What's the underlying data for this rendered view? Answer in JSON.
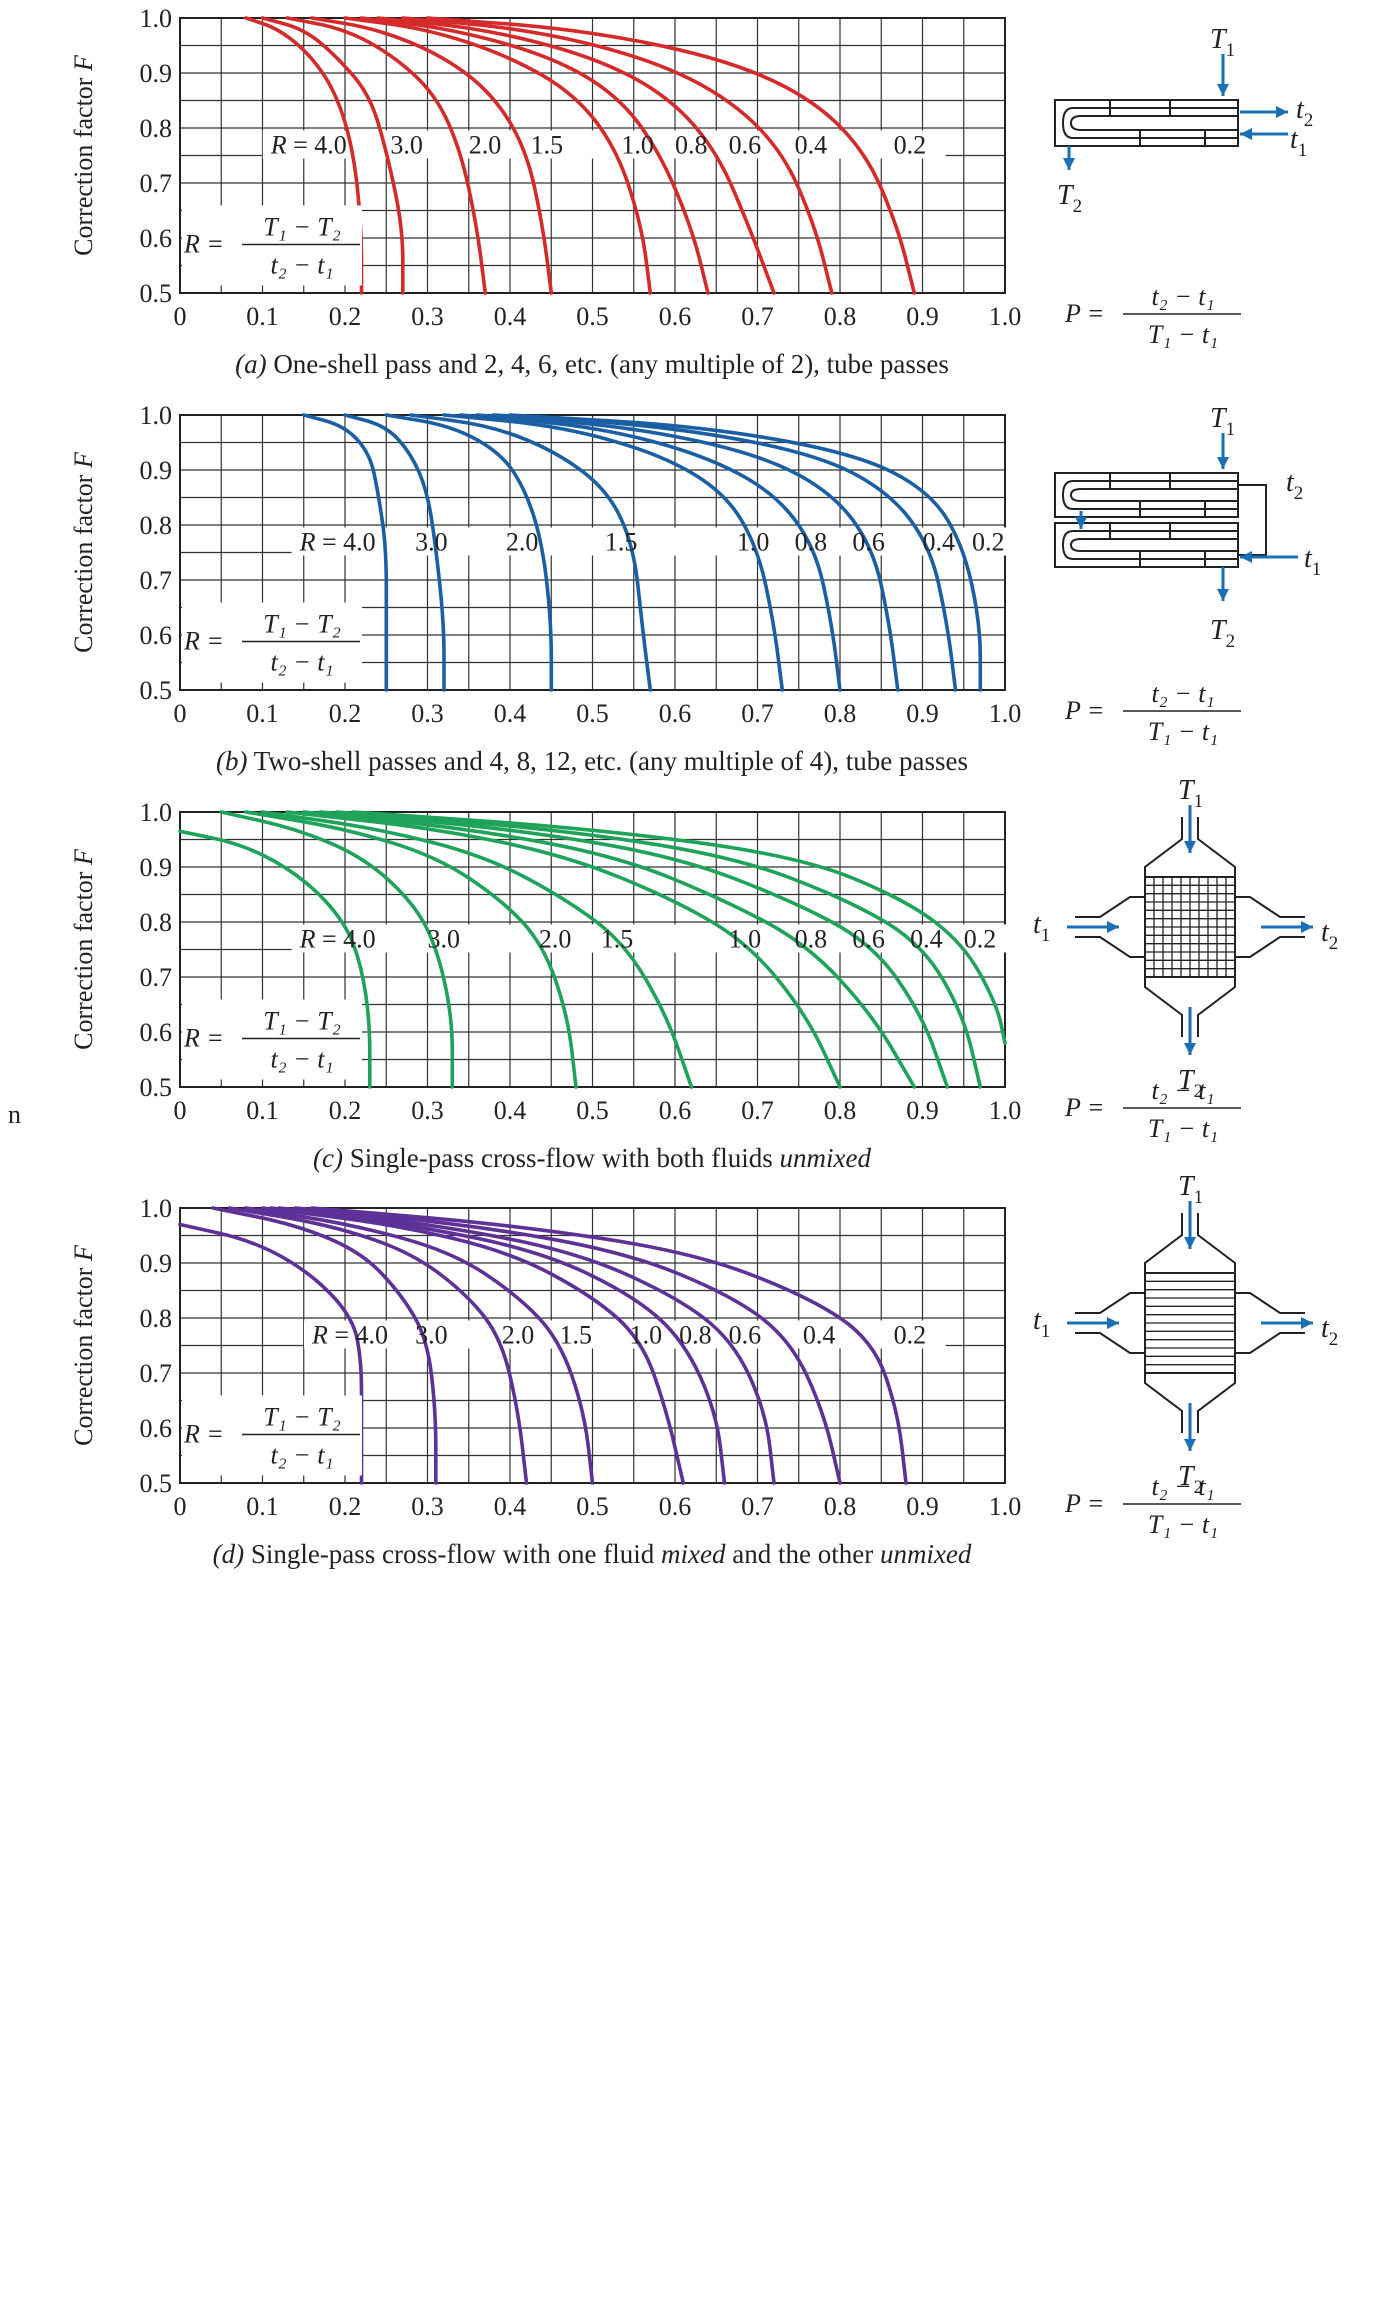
{
  "stray_text": "n",
  "axis": {
    "ylabel_main": "Correction factor ",
    "ylabel_italic": "F",
    "x_ticks": [
      "0",
      "0.1",
      "0.2",
      "0.3",
      "0.4",
      "0.5",
      "0.6",
      "0.7",
      "0.8",
      "0.9",
      "1.0"
    ],
    "y_ticks": [
      "0.5",
      "0.6",
      "0.7",
      "0.8",
      "0.9",
      "1.0"
    ],
    "p_formula": {
      "lhs": "P =",
      "num": "t₂ − t₁",
      "den": "T₁ − t₁"
    },
    "r_formula": {
      "lhs": "R =",
      "num": "T₁ − T₂",
      "den": "t₂ − t₁"
    }
  },
  "chart_data": [
    {
      "type": "line",
      "panel": "a",
      "caption_prefix": "(a)",
      "caption": " One-shell pass and 2, 4, 6, etc. (any multiple of 2), tube passes",
      "color": "#d42a2a",
      "xlim": [
        0,
        1.0
      ],
      "ylim": [
        0.5,
        1.0
      ],
      "grid": true,
      "series": [
        {
          "name": "R = 4.0",
          "x": [
            0.08,
            0.12,
            0.16,
            0.19,
            0.21,
            0.22,
            0.22
          ],
          "y": [
            1.0,
            0.98,
            0.93,
            0.86,
            0.76,
            0.62,
            0.5
          ]
        },
        {
          "name": "3.0",
          "x": [
            0.1,
            0.15,
            0.19,
            0.23,
            0.25,
            0.27,
            0.27
          ],
          "y": [
            1.0,
            0.98,
            0.93,
            0.86,
            0.76,
            0.62,
            0.5
          ]
        },
        {
          "name": "2.0",
          "x": [
            0.13,
            0.2,
            0.26,
            0.31,
            0.34,
            0.36,
            0.37
          ],
          "y": [
            1.0,
            0.98,
            0.93,
            0.86,
            0.76,
            0.62,
            0.5
          ]
        },
        {
          "name": "1.5",
          "x": [
            0.16,
            0.24,
            0.32,
            0.38,
            0.42,
            0.44,
            0.45
          ],
          "y": [
            1.0,
            0.98,
            0.93,
            0.86,
            0.76,
            0.62,
            0.5
          ]
        },
        {
          "name": "1.0",
          "x": [
            0.2,
            0.3,
            0.4,
            0.48,
            0.53,
            0.56,
            0.57
          ],
          "y": [
            1.0,
            0.98,
            0.93,
            0.86,
            0.76,
            0.62,
            0.5
          ]
        },
        {
          "name": "0.8",
          "x": [
            0.22,
            0.33,
            0.45,
            0.53,
            0.58,
            0.62,
            0.64
          ],
          "y": [
            1.0,
            0.98,
            0.93,
            0.86,
            0.76,
            0.62,
            0.5
          ]
        },
        {
          "name": "0.6",
          "x": [
            0.24,
            0.37,
            0.5,
            0.59,
            0.65,
            0.69,
            0.72
          ],
          "y": [
            1.0,
            0.98,
            0.93,
            0.86,
            0.76,
            0.62,
            0.5
          ]
        },
        {
          "name": "0.4",
          "x": [
            0.27,
            0.42,
            0.56,
            0.66,
            0.73,
            0.77,
            0.79
          ],
          "y": [
            1.0,
            0.98,
            0.93,
            0.86,
            0.76,
            0.62,
            0.5
          ]
        },
        {
          "name": "0.2",
          "x": [
            0.3,
            0.48,
            0.65,
            0.76,
            0.83,
            0.87,
            0.89
          ],
          "y": [
            1.0,
            0.98,
            0.93,
            0.86,
            0.76,
            0.62,
            0.5
          ]
        }
      ],
      "label_row_y": 0.77,
      "labels": [
        {
          "text": "R = 4.0",
          "x": 0.11
        },
        {
          "text": "3.0",
          "x": 0.255
        },
        {
          "text": "2.0",
          "x": 0.35
        },
        {
          "text": "1.5",
          "x": 0.425
        },
        {
          "text": "1.0",
          "x": 0.535
        },
        {
          "text": "0.8",
          "x": 0.6
        },
        {
          "text": "0.6",
          "x": 0.665
        },
        {
          "text": "0.4",
          "x": 0.745
        },
        {
          "text": "0.2",
          "x": 0.865
        }
      ],
      "diagram": {
        "kind": "one-shell",
        "T1": "T",
        "T1s": "1",
        "t2": "t",
        "t2s": "2",
        "t1": "t",
        "t1s": "1",
        "T2": "T",
        "T2s": "2"
      }
    },
    {
      "type": "line",
      "panel": "b",
      "caption_prefix": "(b)",
      "caption": " Two-shell passes and 4, 8, 12, etc. (any multiple of 4), tube passes",
      "color": "#1a5fa3",
      "xlim": [
        0,
        1.0
      ],
      "ylim": [
        0.5,
        1.0
      ],
      "grid": true,
      "series": [
        {
          "name": "R = 4.0",
          "x": [
            0.15,
            0.2,
            0.23,
            0.24,
            0.25,
            0.25,
            0.25
          ],
          "y": [
            1.0,
            0.98,
            0.93,
            0.86,
            0.76,
            0.62,
            0.5
          ]
        },
        {
          "name": "3.0",
          "x": [
            0.2,
            0.25,
            0.28,
            0.3,
            0.31,
            0.32,
            0.32
          ],
          "y": [
            1.0,
            0.98,
            0.93,
            0.86,
            0.76,
            0.62,
            0.5
          ]
        },
        {
          "name": "2.0",
          "x": [
            0.25,
            0.33,
            0.39,
            0.42,
            0.44,
            0.45,
            0.45
          ],
          "y": [
            1.0,
            0.98,
            0.93,
            0.86,
            0.76,
            0.62,
            0.5
          ]
        },
        {
          "name": "1.5",
          "x": [
            0.28,
            0.38,
            0.46,
            0.52,
            0.55,
            0.56,
            0.57
          ],
          "y": [
            1.0,
            0.98,
            0.93,
            0.86,
            0.76,
            0.62,
            0.5
          ]
        },
        {
          "name": "1.0",
          "x": [
            0.32,
            0.46,
            0.58,
            0.66,
            0.7,
            0.72,
            0.73
          ],
          "y": [
            1.0,
            0.98,
            0.93,
            0.86,
            0.76,
            0.62,
            0.5
          ]
        },
        {
          "name": "0.8",
          "x": [
            0.34,
            0.5,
            0.63,
            0.72,
            0.77,
            0.79,
            0.8
          ],
          "y": [
            1.0,
            0.98,
            0.93,
            0.86,
            0.76,
            0.62,
            0.5
          ]
        },
        {
          "name": "0.6",
          "x": [
            0.36,
            0.54,
            0.7,
            0.79,
            0.84,
            0.86,
            0.87
          ],
          "y": [
            1.0,
            0.98,
            0.93,
            0.86,
            0.76,
            0.62,
            0.5
          ]
        },
        {
          "name": "0.4",
          "x": [
            0.38,
            0.59,
            0.77,
            0.86,
            0.91,
            0.93,
            0.94
          ],
          "y": [
            1.0,
            0.98,
            0.93,
            0.86,
            0.76,
            0.62,
            0.5
          ]
        },
        {
          "name": "0.2",
          "x": [
            0.4,
            0.63,
            0.82,
            0.91,
            0.95,
            0.97,
            0.97
          ],
          "y": [
            1.0,
            0.98,
            0.93,
            0.86,
            0.76,
            0.62,
            0.5
          ]
        }
      ],
      "label_row_y": 0.77,
      "labels": [
        {
          "text": "R = 4.0",
          "x": 0.145
        },
        {
          "text": "3.0",
          "x": 0.285
        },
        {
          "text": "2.0",
          "x": 0.395
        },
        {
          "text": "1.5",
          "x": 0.515
        },
        {
          "text": "1.0",
          "x": 0.675
        },
        {
          "text": "0.8",
          "x": 0.745
        },
        {
          "text": "0.6",
          "x": 0.815
        },
        {
          "text": "0.4",
          "x": 0.9
        },
        {
          "text": "0.2",
          "x": 0.96
        }
      ],
      "diagram": {
        "kind": "two-shell",
        "T1": "T",
        "T1s": "1",
        "t2": "t",
        "t2s": "2",
        "t1": "t",
        "t1s": "1",
        "T2": "T",
        "T2s": "2"
      }
    },
    {
      "type": "line",
      "panel": "c",
      "caption_prefix": "(c)",
      "caption": " Single-pass cross-flow with both fluids ",
      "caption_italic": "unmixed",
      "color": "#1fa35a",
      "xlim": [
        0,
        1.0
      ],
      "ylim": [
        0.5,
        1.0
      ],
      "grid": true,
      "series": [
        {
          "name": "R = 4.0",
          "x": [
            0.0,
            0.08,
            0.15,
            0.2,
            0.22,
            0.23,
            0.23
          ],
          "y": [
            0.965,
            0.94,
            0.88,
            0.8,
            0.72,
            0.62,
            0.5
          ]
        },
        {
          "name": "3.0",
          "x": [
            0.05,
            0.14,
            0.22,
            0.28,
            0.31,
            0.33,
            0.33
          ],
          "y": [
            1.0,
            0.97,
            0.92,
            0.84,
            0.76,
            0.63,
            0.5
          ]
        },
        {
          "name": "2.0",
          "x": [
            0.08,
            0.2,
            0.31,
            0.39,
            0.44,
            0.47,
            0.48
          ],
          "y": [
            1.0,
            0.97,
            0.92,
            0.84,
            0.76,
            0.63,
            0.5
          ]
        },
        {
          "name": "1.5",
          "x": [
            0.1,
            0.24,
            0.37,
            0.47,
            0.54,
            0.59,
            0.62
          ],
          "y": [
            1.0,
            0.97,
            0.92,
            0.84,
            0.76,
            0.63,
            0.5
          ]
        },
        {
          "name": "1.0",
          "x": [
            0.13,
            0.31,
            0.47,
            0.6,
            0.69,
            0.76,
            0.8
          ],
          "y": [
            1.0,
            0.97,
            0.92,
            0.84,
            0.76,
            0.63,
            0.5
          ]
        },
        {
          "name": "0.8",
          "x": [
            0.15,
            0.35,
            0.53,
            0.66,
            0.76,
            0.84,
            0.89
          ],
          "y": [
            1.0,
            0.97,
            0.92,
            0.84,
            0.76,
            0.63,
            0.5
          ]
        },
        {
          "name": "0.6",
          "x": [
            0.17,
            0.4,
            0.6,
            0.74,
            0.84,
            0.9,
            0.93
          ],
          "y": [
            1.0,
            0.97,
            0.92,
            0.84,
            0.76,
            0.63,
            0.5
          ]
        },
        {
          "name": "0.4",
          "x": [
            0.19,
            0.45,
            0.67,
            0.81,
            0.9,
            0.95,
            0.97
          ],
          "y": [
            1.0,
            0.97,
            0.92,
            0.84,
            0.76,
            0.63,
            0.5
          ]
        },
        {
          "name": "0.2",
          "x": [
            0.21,
            0.5,
            0.75,
            0.88,
            0.95,
            0.99,
            1.0
          ],
          "y": [
            1.0,
            0.97,
            0.92,
            0.84,
            0.76,
            0.65,
            0.58
          ]
        }
      ],
      "label_row_y": 0.77,
      "labels": [
        {
          "text": "R = 4.0",
          "x": 0.145
        },
        {
          "text": "3.0",
          "x": 0.3
        },
        {
          "text": "2.0",
          "x": 0.435
        },
        {
          "text": "1.5",
          "x": 0.51
        },
        {
          "text": "1.0",
          "x": 0.665
        },
        {
          "text": "0.8",
          "x": 0.745
        },
        {
          "text": "0.6",
          "x": 0.815
        },
        {
          "text": "0.4",
          "x": 0.885
        },
        {
          "text": "0.2",
          "x": 0.95
        }
      ],
      "diagram": {
        "kind": "cross-unmixed",
        "T1": "T",
        "T1s": "1",
        "t2": "t",
        "t2s": "2",
        "t1": "t",
        "t1s": "1",
        "T2": "T",
        "T2s": "2"
      }
    },
    {
      "type": "line",
      "panel": "d",
      "caption_prefix": "(d)",
      "caption": " Single-pass cross-flow with one fluid ",
      "caption_italic": "mixed",
      "caption_mid": " and the other ",
      "caption_italic2": "unmixed",
      "color": "#5e3197",
      "xlim": [
        0,
        1.0
      ],
      "ylim": [
        0.5,
        1.0
      ],
      "grid": true,
      "series": [
        {
          "name": "R = 4.0",
          "x": [
            0.0,
            0.09,
            0.16,
            0.21,
            0.22,
            0.22,
            0.22
          ],
          "y": [
            0.97,
            0.94,
            0.88,
            0.8,
            0.72,
            0.62,
            0.5
          ]
        },
        {
          "name": "3.0",
          "x": [
            0.04,
            0.14,
            0.22,
            0.27,
            0.3,
            0.31,
            0.31
          ],
          "y": [
            1.0,
            0.97,
            0.92,
            0.84,
            0.76,
            0.63,
            0.5
          ]
        },
        {
          "name": "2.0",
          "x": [
            0.06,
            0.18,
            0.28,
            0.35,
            0.39,
            0.41,
            0.42
          ],
          "y": [
            1.0,
            0.97,
            0.92,
            0.84,
            0.76,
            0.63,
            0.5
          ]
        },
        {
          "name": "1.5",
          "x": [
            0.08,
            0.21,
            0.33,
            0.41,
            0.46,
            0.49,
            0.5
          ],
          "y": [
            1.0,
            0.97,
            0.92,
            0.84,
            0.76,
            0.63,
            0.5
          ]
        },
        {
          "name": "1.0",
          "x": [
            0.1,
            0.26,
            0.4,
            0.5,
            0.56,
            0.59,
            0.61
          ],
          "y": [
            1.0,
            0.97,
            0.92,
            0.84,
            0.76,
            0.63,
            0.5
          ]
        },
        {
          "name": "0.8",
          "x": [
            0.11,
            0.28,
            0.44,
            0.55,
            0.61,
            0.65,
            0.66
          ],
          "y": [
            1.0,
            0.97,
            0.92,
            0.84,
            0.76,
            0.63,
            0.5
          ]
        },
        {
          "name": "0.6",
          "x": [
            0.12,
            0.31,
            0.48,
            0.6,
            0.67,
            0.71,
            0.72
          ],
          "y": [
            1.0,
            0.97,
            0.92,
            0.84,
            0.76,
            0.63,
            0.5
          ]
        },
        {
          "name": "0.4",
          "x": [
            0.14,
            0.35,
            0.54,
            0.67,
            0.74,
            0.78,
            0.8
          ],
          "y": [
            1.0,
            0.97,
            0.92,
            0.84,
            0.76,
            0.63,
            0.5
          ]
        },
        {
          "name": "0.2",
          "x": [
            0.16,
            0.4,
            0.62,
            0.76,
            0.84,
            0.87,
            0.88
          ],
          "y": [
            1.0,
            0.97,
            0.92,
            0.84,
            0.76,
            0.63,
            0.5
          ]
        }
      ],
      "label_row_y": 0.77,
      "labels": [
        {
          "text": "R = 4.0",
          "x": 0.16
        },
        {
          "text": "3.0",
          "x": 0.285
        },
        {
          "text": "2.0",
          "x": 0.39
        },
        {
          "text": "1.5",
          "x": 0.46
        },
        {
          "text": "1.0",
          "x": 0.545
        },
        {
          "text": "0.8",
          "x": 0.605
        },
        {
          "text": "0.6",
          "x": 0.665
        },
        {
          "text": "0.4",
          "x": 0.755
        },
        {
          "text": "0.2",
          "x": 0.865
        }
      ],
      "diagram": {
        "kind": "cross-mixed",
        "T1": "T",
        "T1s": "1",
        "t2": "t",
        "t2s": "2",
        "t1": "t",
        "t1s": "1",
        "T2": "T",
        "T2s": "2"
      }
    }
  ]
}
